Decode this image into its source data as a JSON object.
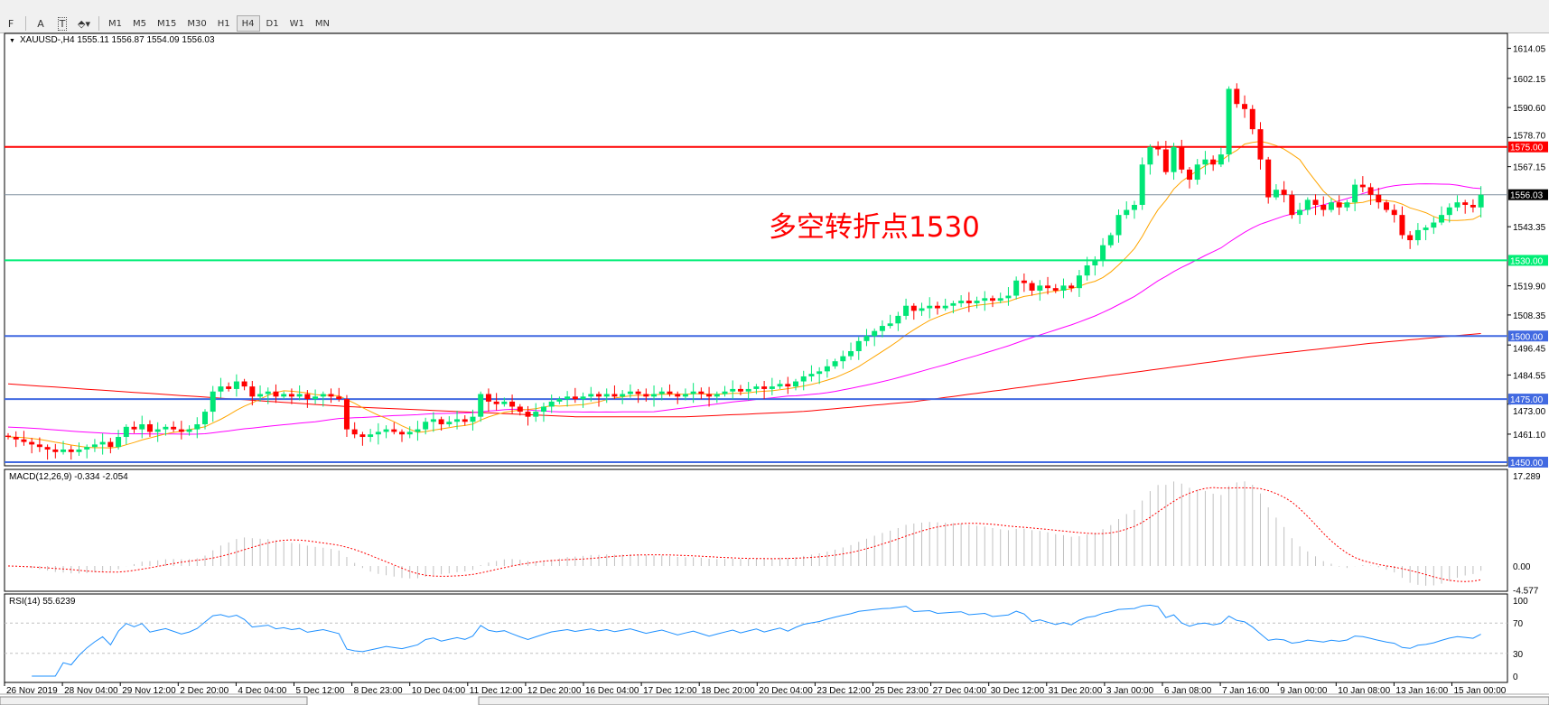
{
  "toolbar": {
    "tools": [
      {
        "icon": "period-separator-icon",
        "label": "F"
      },
      {
        "icon": "text-icon",
        "label": "A"
      },
      {
        "icon": "text-label-icon",
        "label": "T"
      },
      {
        "icon": "arrows-icon",
        "label": "⬘▾"
      }
    ],
    "timeframes": [
      "M1",
      "M5",
      "M15",
      "M30",
      "H1",
      "H4",
      "D1",
      "W1",
      "MN"
    ],
    "active_timeframe": "H4"
  },
  "chart_data": {
    "type": "candlestick",
    "header": "XAUUSD-,H4  1555.11 1556.87 1554.09 1556.03",
    "annotation": "多空转折点1530",
    "colors": {
      "bull": "#00e676",
      "bear": "#ff0000",
      "ma_fast": "#ffa500",
      "ma_mid": "#ff00ff",
      "ma_slow": "#ff0000",
      "macd_hist": "#c0c0c0",
      "macd_signal": "#ff0000",
      "rsi": "#1e90ff"
    },
    "closes": [
      1460,
      1459,
      1458,
      1457,
      1456,
      1455,
      1454,
      1455,
      1454,
      1455,
      1456,
      1457,
      1458,
      1456,
      1460,
      1464,
      1463,
      1465,
      1462,
      1463,
      1464,
      1463,
      1462,
      1463,
      1465,
      1470,
      1478,
      1480,
      1479,
      1482,
      1480,
      1476,
      1477,
      1478,
      1476,
      1477,
      1476,
      1477,
      1475,
      1476,
      1477,
      1476,
      1475,
      1463,
      1461,
      1460,
      1461,
      1462,
      1463,
      1462,
      1461,
      1462,
      1463,
      1466,
      1467,
      1465,
      1466,
      1467,
      1466,
      1468,
      1477,
      1474,
      1473,
      1474,
      1472,
      1470,
      1468,
      1470,
      1472,
      1474,
      1475,
      1476,
      1475,
      1476,
      1477,
      1476,
      1477,
      1476,
      1477,
      1478,
      1477,
      1476,
      1477,
      1478,
      1477,
      1476,
      1477,
      1478,
      1477,
      1476,
      1477,
      1478,
      1479,
      1478,
      1479,
      1480,
      1479,
      1480,
      1481,
      1480,
      1482,
      1484,
      1485,
      1486,
      1488,
      1490,
      1492,
      1494,
      1498,
      1500,
      1502,
      1504,
      1505,
      1508,
      1512,
      1510,
      1511,
      1512,
      1511,
      1512,
      1513,
      1514,
      1513,
      1514,
      1515,
      1514,
      1515,
      1516,
      1522,
      1521,
      1518,
      1520,
      1519,
      1518,
      1520,
      1519,
      1524,
      1528,
      1530,
      1536,
      1540,
      1548,
      1550,
      1552,
      1568,
      1575,
      1574,
      1565,
      1575,
      1566,
      1562,
      1568,
      1570,
      1568,
      1572,
      1598,
      1592,
      1590,
      1582,
      1570,
      1555,
      1558,
      1556,
      1548,
      1550,
      1554,
      1552,
      1550,
      1553,
      1551,
      1553,
      1560,
      1559,
      1556,
      1553,
      1550,
      1548,
      1540,
      1538,
      1542,
      1543,
      1545,
      1548,
      1551,
      1553,
      1552,
      1551,
      1556.03
    ],
    "ma_slow": [
      1481,
      1478,
      1475,
      1472,
      1470,
      1468,
      1468,
      1470,
      1474,
      1480,
      1486,
      1492,
      1497,
      1501
    ],
    "price_ticks": [
      "1614.05",
      "1602.15",
      "1590.60",
      "1578.70",
      "1567.15",
      "1543.35",
      "1519.90",
      "1508.35",
      "1496.45",
      "1484.55",
      "1473.00",
      "1461.10"
    ],
    "levels": [
      {
        "price": 1575,
        "label": "1575.00",
        "color": "#ff0000"
      },
      {
        "price": 1556.03,
        "label": "1556.03",
        "color": "#8090a0",
        "tag_bg": "#000000"
      },
      {
        "price": 1530,
        "label": "1530.00",
        "color": "#00ee76"
      },
      {
        "price": 1500,
        "label": "1500.00",
        "color": "#4169e1"
      },
      {
        "price": 1475,
        "label": "1475.00",
        "color": "#4169e1"
      },
      {
        "price": 1450,
        "label": "1450.00",
        "color": "#4169e1"
      }
    ],
    "y_range": [
      1450,
      1614.05
    ],
    "macd": {
      "label": "MACD(12,26,9) -0.334 -2.054",
      "ticks": [
        "17.289",
        "0.00",
        "-4.577"
      ],
      "range": [
        -4.577,
        17.289
      ]
    },
    "rsi": {
      "label": "RSI(14) 55.6239",
      "ticks": [
        "100",
        "70",
        "30",
        "0"
      ],
      "levels": [
        30,
        70
      ]
    },
    "time_labels": [
      "26 Nov 2019",
      "28 Nov 04:00",
      "29 Nov 12:00",
      "2 Dec 20:00",
      "4 Dec 04:00",
      "5 Dec 12:00",
      "8 Dec 23:00",
      "10 Dec 04:00",
      "11 Dec 12:00",
      "12 Dec 20:00",
      "16 Dec 04:00",
      "17 Dec 12:00",
      "18 Dec 20:00",
      "20 Dec 04:00",
      "23 Dec 12:00",
      "25 Dec 23:00",
      "27 Dec 04:00",
      "30 Dec 12:00",
      "31 Dec 20:00",
      "3 Jan 00:00",
      "6 Jan 08:00",
      "7 Jan 16:00",
      "9 Jan 00:00",
      "10 Jan 08:00",
      "13 Jan 16:00",
      "15 Jan 00:00"
    ]
  }
}
